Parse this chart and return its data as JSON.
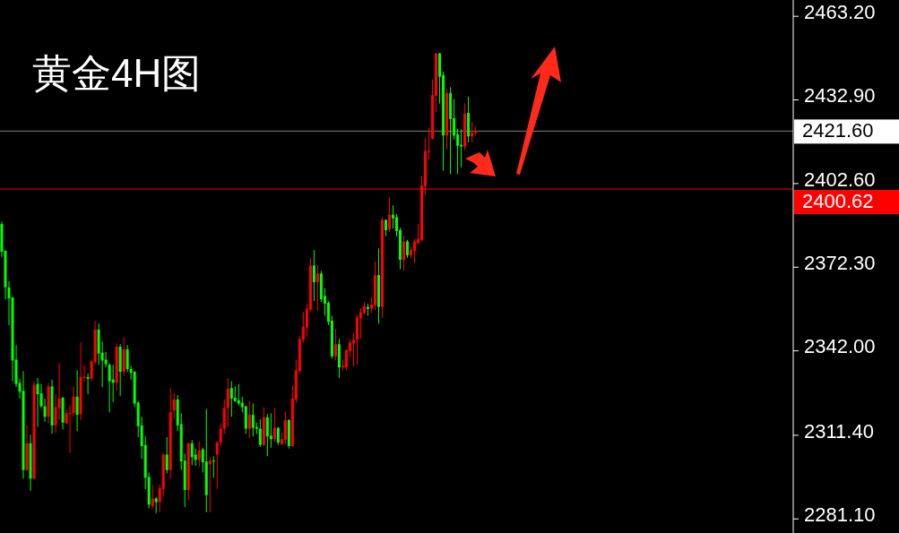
{
  "chart_data": {
    "type": "candlestick",
    "title": "黄金4H图",
    "categories": [
      null,
      null,
      null,
      null,
      null,
      null,
      null,
      null,
      null,
      null,
      null,
      null,
      null,
      null,
      null,
      null,
      null,
      null,
      null,
      null,
      null,
      null,
      null,
      null,
      null,
      null,
      null,
      null,
      null,
      null,
      null,
      null,
      null,
      null,
      null,
      null,
      null,
      null,
      null,
      null,
      null,
      null,
      null,
      null,
      null,
      null,
      null,
      null,
      null,
      null,
      null,
      null,
      null,
      null,
      null,
      null,
      null,
      null,
      null,
      null,
      null,
      null,
      null,
      null,
      null,
      null,
      null,
      null,
      null,
      null,
      null,
      null,
      null,
      null,
      null,
      null,
      null,
      null,
      null,
      null,
      null,
      null,
      null,
      null,
      null,
      null,
      null,
      null,
      null,
      null,
      null,
      null,
      null,
      null,
      null,
      null,
      null,
      null,
      null,
      null,
      null,
      null,
      null,
      null,
      null,
      null,
      null,
      null,
      null,
      null,
      null,
      null,
      null,
      null,
      null,
      null,
      null,
      null,
      null,
      null,
      null,
      null,
      null,
      null,
      null,
      null,
      null,
      null,
      null,
      null,
      null,
      null,
      null,
      null,
      null,
      null,
      null,
      null,
      null,
      null,
      null,
      null,
      null,
      null,
      null,
      null,
      null,
      null,
      null,
      null,
      null,
      null,
      null,
      null,
      null,
      null,
      null,
      null,
      null,
      null,
      null,
      null,
      null,
      null,
      null,
      null,
      null,
      null,
      null,
      null,
      null,
      null,
      null,
      null,
      null,
      null,
      null,
      null,
      null,
      null,
      null,
      null,
      null,
      null,
      null,
      null,
      null,
      null,
      null,
      null,
      null,
      null,
      null,
      null,
      null,
      null,
      null,
      null,
      null,
      null,
      null,
      null,
      null,
      null,
      null,
      null,
      null,
      null,
      null,
      null,
      null,
      null,
      null,
      null,
      null,
      null,
      null,
      null,
      null,
      null,
      null
    ],
    "ohlc": [
      [
        2387.9,
        2388.8,
        2376.0,
        2377.9
      ],
      [
        2378.2,
        2378.5,
        2360.7,
        2365.0
      ],
      [
        2365.0,
        2367.2,
        2351.3,
        2361.0
      ],
      [
        2361.3,
        2361.6,
        2331.0,
        2338.5
      ],
      [
        2338.8,
        2344.1,
        2328.8,
        2330.0
      ],
      [
        2330.4,
        2331.9,
        2324.7,
        2327.2
      ],
      [
        2327.5,
        2334.7,
        2295.7,
        2298.8
      ],
      [
        2298.8,
        2315.0,
        2298.5,
        2308.5
      ],
      [
        2308.5,
        2311.6,
        2291.3,
        2295.7
      ],
      [
        2295.7,
        2331.0,
        2295.4,
        2329.7
      ],
      [
        2330.0,
        2332.2,
        2314.4,
        2326.3
      ],
      [
        2326.6,
        2330.0,
        2321.3,
        2321.9
      ],
      [
        2321.9,
        2324.7,
        2316.3,
        2318.1
      ],
      [
        2318.1,
        2330.4,
        2315.7,
        2329.1
      ],
      [
        2329.1,
        2331.6,
        2311.9,
        2315.0
      ],
      [
        2315.0,
        2326.3,
        2312.2,
        2321.6
      ],
      [
        2321.3,
        2337.5,
        2316.9,
        2324.7
      ],
      [
        2325.0,
        2325.3,
        2313.5,
        2316.0
      ],
      [
        2315.7,
        2321.0,
        2315.5,
        2319.4
      ],
      [
        2319.1,
        2322.2,
        2305.0,
        2319.4
      ],
      [
        2319.4,
        2329.1,
        2318.1,
        2325.4
      ],
      [
        2325.4,
        2335.0,
        2312.9,
        2318.8
      ],
      [
        2319.1,
        2345.0,
        2316.9,
        2332.5
      ],
      [
        2332.2,
        2336.6,
        2330.7,
        2332.5
      ],
      [
        2332.5,
        2333.8,
        2326.3,
        2331.9
      ],
      [
        2331.9,
        2338.8,
        2331.0,
        2338.2
      ],
      [
        2337.9,
        2352.9,
        2337.2,
        2349.7
      ],
      [
        2349.7,
        2351.9,
        2336.9,
        2341.0
      ],
      [
        2341.3,
        2345.4,
        2328.8,
        2338.5
      ],
      [
        2338.8,
        2341.6,
        2336.0,
        2337.2
      ],
      [
        2336.9,
        2337.5,
        2319.7,
        2331.0
      ],
      [
        2331.6,
        2336.9,
        2323.5,
        2330.4
      ],
      [
        2330.4,
        2344.7,
        2327.5,
        2343.5
      ],
      [
        2343.5,
        2344.4,
        2325.7,
        2334.4
      ],
      [
        2334.4,
        2346.9,
        2332.9,
        2342.5
      ],
      [
        2342.5,
        2344.1,
        2334.4,
        2335.4
      ],
      [
        2335.4,
        2336.6,
        2331.6,
        2334.1
      ],
      [
        2334.4,
        2334.7,
        2321.6,
        2322.9
      ],
      [
        2323.2,
        2323.8,
        2310.7,
        2314.7
      ],
      [
        2315.0,
        2318.1,
        2302.9,
        2307.5
      ],
      [
        2307.9,
        2311.0,
        2291.9,
        2296.0
      ],
      [
        2296.3,
        2297.9,
        2285.0,
        2286.3
      ],
      [
        2285.7,
        2293.5,
        2284.7,
        2288.5
      ],
      [
        2288.5,
        2289.1,
        2283.2,
        2287.2
      ],
      [
        2287.2,
        2293.5,
        2283.5,
        2292.2
      ],
      [
        2291.9,
        2305.0,
        2289.1,
        2304.4
      ],
      [
        2304.4,
        2310.7,
        2297.6,
        2298.8
      ],
      [
        2298.8,
        2328.5,
        2295.7,
        2319.7
      ],
      [
        2320.4,
        2326.6,
        2317.5,
        2324.4
      ],
      [
        2324.4,
        2326.0,
        2312.9,
        2315.0
      ],
      [
        2315.4,
        2319.4,
        2298.8,
        2301.9
      ],
      [
        2302.2,
        2304.7,
        2285.4,
        2291.6
      ],
      [
        2291.6,
        2308.8,
        2287.9,
        2308.5
      ],
      [
        2308.5,
        2309.7,
        2300.6,
        2303.5
      ],
      [
        2304.4,
        2306.6,
        2300.3,
        2302.5
      ],
      [
        2302.5,
        2309.1,
        2300.0,
        2306.0
      ],
      [
        2306.3,
        2306.9,
        2297.9,
        2301.6
      ],
      [
        2301.9,
        2321.0,
        2283.5,
        2289.7
      ],
      [
        2300.9,
        2303.5,
        2283.5,
        2302.2
      ],
      [
        2302.2,
        2303.8,
        2296.0,
        2301.9
      ],
      [
        2304.4,
        2309.4,
        2291.9,
        2308.8
      ],
      [
        2308.8,
        2315.7,
        2307.5,
        2313.8
      ],
      [
        2313.8,
        2324.4,
        2311.9,
        2321.3
      ],
      [
        2321.3,
        2332.2,
        2314.4,
        2328.2
      ],
      [
        2328.5,
        2331.0,
        2318.1,
        2324.7
      ],
      [
        2325.0,
        2329.1,
        2323.5,
        2323.8
      ],
      [
        2324.1,
        2330.0,
        2322.2,
        2322.9
      ],
      [
        2323.2,
        2325.4,
        2319.7,
        2321.6
      ],
      [
        2321.9,
        2322.2,
        2311.9,
        2313.8
      ],
      [
        2313.8,
        2323.8,
        2310.4,
        2318.8
      ],
      [
        2318.8,
        2322.9,
        2311.0,
        2314.1
      ],
      [
        2314.4,
        2316.0,
        2311.9,
        2313.8
      ],
      [
        2313.8,
        2317.2,
        2307.2,
        2307.9
      ],
      [
        2307.9,
        2321.6,
        2307.5,
        2317.9
      ],
      [
        2317.9,
        2319.1,
        2303.8,
        2311.0
      ],
      [
        2311.3,
        2319.4,
        2306.9,
        2310.0
      ],
      [
        2310.0,
        2321.3,
        2309.1,
        2314.1
      ],
      [
        2314.1,
        2314.4,
        2307.9,
        2308.8
      ],
      [
        2308.2,
        2312.5,
        2307.9,
        2310.0
      ],
      [
        2309.7,
        2320.0,
        2308.2,
        2316.9
      ],
      [
        2316.9,
        2317.2,
        2306.6,
        2307.5
      ],
      [
        2307.5,
        2329.4,
        2307.2,
        2324.7
      ],
      [
        2324.4,
        2338.8,
        2323.2,
        2335.0
      ],
      [
        2334.7,
        2347.5,
        2333.8,
        2346.3
      ],
      [
        2346.0,
        2356.0,
        2345.0,
        2350.7
      ],
      [
        2350.4,
        2359.1,
        2347.2,
        2357.2
      ],
      [
        2356.9,
        2375.7,
        2356.0,
        2372.9
      ],
      [
        2372.9,
        2378.5,
        2360.0,
        2366.9
      ],
      [
        2366.9,
        2373.2,
        2356.6,
        2370.0
      ],
      [
        2370.0,
        2371.0,
        2359.7,
        2360.7
      ],
      [
        2361.9,
        2364.7,
        2354.7,
        2359.1
      ],
      [
        2359.4,
        2360.0,
        2351.3,
        2352.5
      ],
      [
        2352.9,
        2354.7,
        2339.1,
        2340.0
      ],
      [
        2340.0,
        2350.0,
        2338.5,
        2344.4
      ],
      [
        2344.4,
        2346.3,
        2332.2,
        2336.0
      ],
      [
        2336.0,
        2338.8,
        2335.0,
        2336.6
      ],
      [
        2336.0,
        2342.5,
        2335.0,
        2342.2
      ],
      [
        2341.9,
        2346.3,
        2339.7,
        2345.0
      ],
      [
        2344.7,
        2348.5,
        2336.3,
        2346.0
      ],
      [
        2346.0,
        2355.0,
        2336.9,
        2354.1
      ],
      [
        2353.8,
        2357.5,
        2346.3,
        2356.0
      ],
      [
        2355.7,
        2359.7,
        2355.0,
        2358.2
      ],
      [
        2357.9,
        2359.1,
        2354.7,
        2357.2
      ],
      [
        2357.2,
        2361.3,
        2355.7,
        2358.8
      ],
      [
        2358.5,
        2374.4,
        2356.9,
        2369.4
      ],
      [
        2369.4,
        2379.1,
        2351.9,
        2357.9
      ],
      [
        2357.9,
        2390.4,
        2353.8,
        2389.4
      ],
      [
        2389.4,
        2389.7,
        2383.5,
        2385.7
      ],
      [
        2386.0,
        2397.5,
        2385.0,
        2391.3
      ],
      [
        2391.3,
        2394.7,
        2386.3,
        2390.0
      ],
      [
        2390.4,
        2391.6,
        2383.5,
        2385.4
      ],
      [
        2385.7,
        2386.6,
        2371.6,
        2375.0
      ],
      [
        2375.0,
        2383.8,
        2371.0,
        2381.6
      ],
      [
        2381.6,
        2382.2,
        2375.7,
        2376.6
      ],
      [
        2376.6,
        2379.7,
        2375.7,
        2378.5
      ],
      [
        2378.2,
        2382.5,
        2373.8,
        2381.6
      ],
      [
        2381.0,
        2387.9,
        2380.7,
        2382.5
      ],
      [
        2382.2,
        2405.4,
        2381.6,
        2401.9
      ],
      [
        2401.6,
        2419.1,
        2398.5,
        2414.4
      ],
      [
        2414.1,
        2422.9,
        2411.3,
        2414.4
      ],
      [
        2418.8,
        2440.3,
        2418.5,
        2434.7
      ],
      [
        2434.4,
        2450.0,
        2428.5,
        2449.7
      ],
      [
        2449.7,
        2450.0,
        2431.6,
        2441.3
      ],
      [
        2441.9,
        2443.2,
        2407.2,
        2420.0
      ],
      [
        2420.0,
        2436.9,
        2415.0,
        2435.4
      ],
      [
        2435.4,
        2437.5,
        2406.0,
        2426.0
      ],
      [
        2426.3,
        2433.2,
        2418.5,
        2420.0
      ],
      [
        2420.4,
        2422.5,
        2406.0,
        2416.3
      ],
      [
        2416.6,
        2422.2,
        2408.5,
        2416.0
      ],
      [
        2416.0,
        2431.6,
        2414.7,
        2427.9
      ],
      [
        2428.2,
        2434.1,
        2417.5,
        2419.7
      ],
      [
        2419.7,
        2425.0,
        2417.5,
        2421.0
      ],
      [
        2421.0,
        2423.2,
        2420.0,
        2421.6
      ],
      null,
      null,
      null,
      null,
      null,
      null,
      null,
      null,
      null,
      null,
      null,
      null,
      null,
      null,
      null,
      null,
      null,
      null,
      null,
      null,
      null,
      null,
      null,
      null,
      null,
      null,
      null,
      null,
      null,
      null,
      null,
      null,
      null,
      null,
      null,
      null,
      null,
      null,
      null,
      null,
      null,
      null,
      null,
      null,
      null,
      null,
      null,
      null,
      null,
      null,
      null,
      null,
      null,
      null,
      null,
      null,
      null,
      null,
      null,
      null,
      null,
      null,
      null,
      null,
      null,
      null,
      null,
      null,
      null,
      null,
      null,
      null,
      null,
      null,
      null,
      null,
      null,
      null,
      null,
      null,
      null,
      null,
      null,
      null,
      null,
      null,
      null,
      null
    ],
    "ylim": [
      2276.0,
      2469.1
    ],
    "yticks": [
      {
        "value": 2463.2,
        "label": "2463.20"
      },
      {
        "value": 2432.9,
        "label": "2432.90"
      },
      {
        "value": 2402.6,
        "label": "2402.60"
      },
      {
        "value": 2372.3,
        "label": "2372.30"
      },
      {
        "value": 2342.0,
        "label": "2342.00"
      },
      {
        "value": 2311.4,
        "label": "2311.40"
      },
      {
        "value": 2281.1,
        "label": "2281.10"
      }
    ],
    "tick_labels": "y",
    "ref_lines": [
      {
        "axis": "y",
        "value": 2421.6,
        "label": "2421.60",
        "color": "#808080"
      },
      {
        "axis": "y",
        "value": 2400.62,
        "label": "2400.62",
        "color": "#ff0000"
      }
    ]
  }
}
